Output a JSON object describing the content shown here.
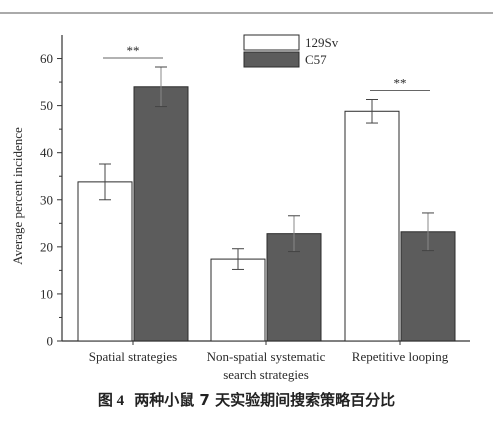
{
  "caption": {
    "figure_number": "图 4",
    "text": "两种小鼠 7 天实验期间搜索策略百分比"
  },
  "colors": {
    "series_129Sv": "#ffffff",
    "series_C57": "#5c5c5c",
    "axis": "#333333",
    "rule": "#555555"
  },
  "chart_data": {
    "type": "bar",
    "title": "",
    "xlabel": "",
    "ylabel": "Average percent incidence",
    "ylim": [
      0,
      65
    ],
    "yticks": [
      0,
      10,
      20,
      30,
      40,
      50,
      60
    ],
    "categories": [
      [
        "Spatial strategies"
      ],
      [
        "Non-spatial systematic",
        "search strategies"
      ],
      [
        "Repetitive looping"
      ]
    ],
    "series": [
      {
        "name": "129Sv",
        "values": [
          33.8,
          17.4,
          48.8
        ],
        "errors": [
          3.8,
          2.2,
          2.5
        ]
      },
      {
        "name": "C57",
        "values": [
          54.0,
          22.8,
          23.2
        ],
        "errors": [
          4.2,
          3.8,
          4.0
        ]
      }
    ],
    "annotations": [
      {
        "category_index": 0,
        "text": "**"
      },
      {
        "category_index": 2,
        "text": "**"
      }
    ],
    "legend": {
      "placement": "top-right"
    },
    "grid": false
  }
}
